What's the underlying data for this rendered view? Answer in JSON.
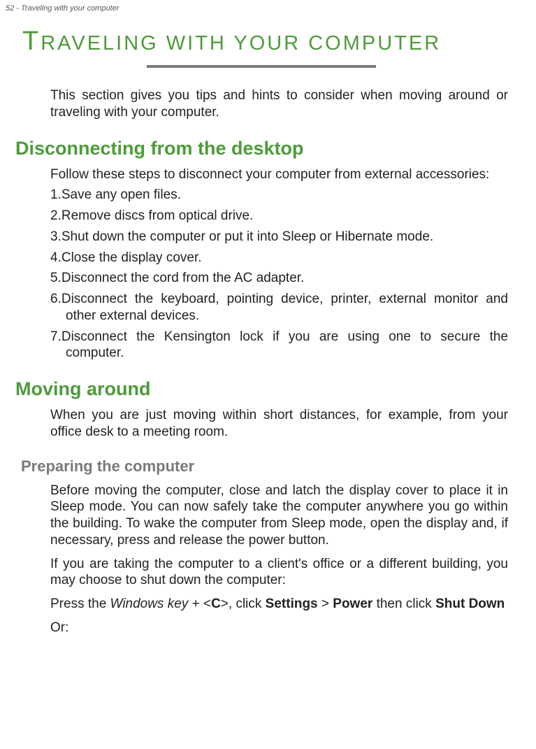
{
  "header": {
    "page_label": "52 - Traveling with your computer"
  },
  "title": {
    "first_letter": "T",
    "rest": "RAVELING WITH YOUR COMPUTER"
  },
  "intro": "This section gives you tips and hints to consider when moving around or traveling with your computer.",
  "section1": {
    "heading": "Disconnecting from the desktop",
    "lead": "Follow these steps to disconnect your computer from external accessories:",
    "items": [
      "Save any open files.",
      "Remove discs from optical drive.",
      "Shut down the computer or put it into Sleep or Hibernate mode.",
      "Close the display cover.",
      "Disconnect the cord from the AC adapter.",
      "Disconnect the keyboard, pointing device, printer, external monitor and other external devices.",
      "Disconnect the Kensington lock if you are using one to secure the computer."
    ]
  },
  "section2": {
    "heading": "Moving around",
    "lead": "When you are just moving within short distances, for example, from your office desk to a meeting room.",
    "sub1": {
      "heading": "Preparing the computer",
      "para1": "Before moving the computer, close and latch the display cover to place it in Sleep mode. You can now safely take the computer anywhere you go within the building. To wake the computer from Sleep mode, open the display and, if necessary, press and release the power button.",
      "para2": "If you are taking the computer to a client's office or a different building, you may choose to shut down the computer:",
      "para3_parts": {
        "p1": "Press the ",
        "win": "Windows key",
        "p2": " + <",
        "c": "C",
        "p3": ">, click ",
        "settings": "Settings",
        "p4": " > ",
        "power": "Power",
        "p5": " then click ",
        "shutdown": "Shut Down"
      },
      "para4": "Or:"
    }
  },
  "colors": {
    "green": "#4d9b3a",
    "gray": "#7a7a7a",
    "text": "#222222",
    "header_text": "#555555"
  }
}
